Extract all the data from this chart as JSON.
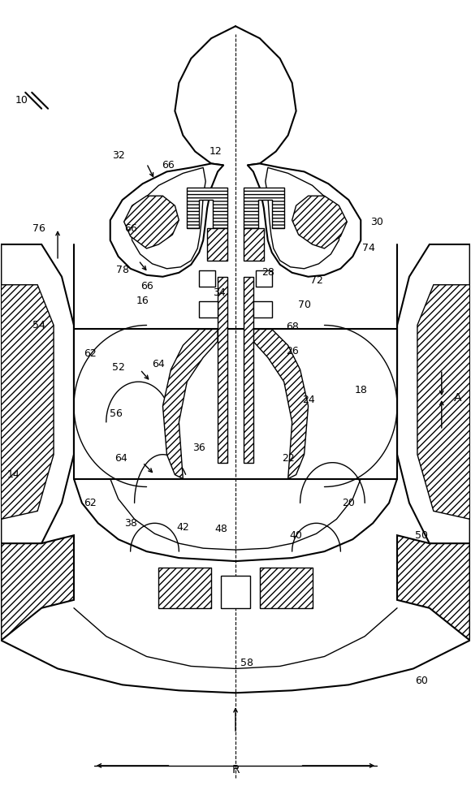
{
  "bg_color": "#ffffff",
  "line_color": "#000000",
  "fig_width": 5.8,
  "fig_height": 10.0,
  "dpi": 100
}
